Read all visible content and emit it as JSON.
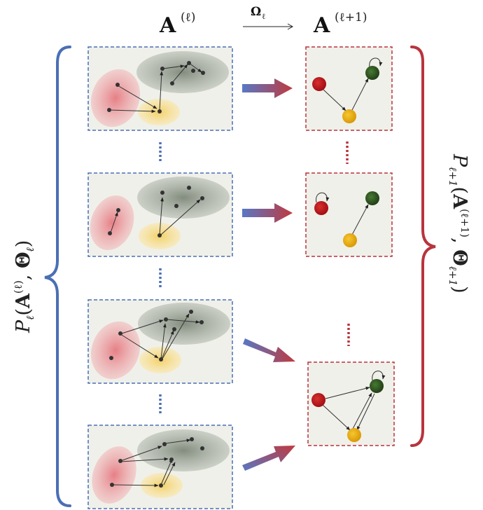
{
  "header": {
    "left_title_base": "A",
    "left_title_sup": "(ℓ)",
    "right_title_base": "A",
    "right_title_sup": "(ℓ+1)",
    "operator_base": "Ω",
    "operator_sub": "ℓ"
  },
  "left_label": {
    "p": "P",
    "p_sub": "ℓ",
    "open": "(",
    "a": "A",
    "a_sup": "(ℓ)",
    "comma": ", ",
    "theta": "Θ",
    "theta_sub": "ℓ",
    "close": ")"
  },
  "right_label": {
    "p": "P",
    "p_sub": "ℓ+1",
    "open": "(",
    "a": "A",
    "a_sup": "(ℓ+1)",
    "comma": ", ",
    "theta": "Θ",
    "theta_sub": "ℓ+1",
    "close": ")"
  },
  "colors": {
    "blue": "#4a6fb5",
    "red": "#b8343d",
    "panel_bg": "#eff0e9",
    "cluster_red": "#e98a8f",
    "cluster_yellow": "#f6d77a",
    "cluster_gray": "#7f8a7a",
    "node_red": "#c0141b",
    "node_yellow": "#e6aa10",
    "node_green": "#2e5521"
  }
}
